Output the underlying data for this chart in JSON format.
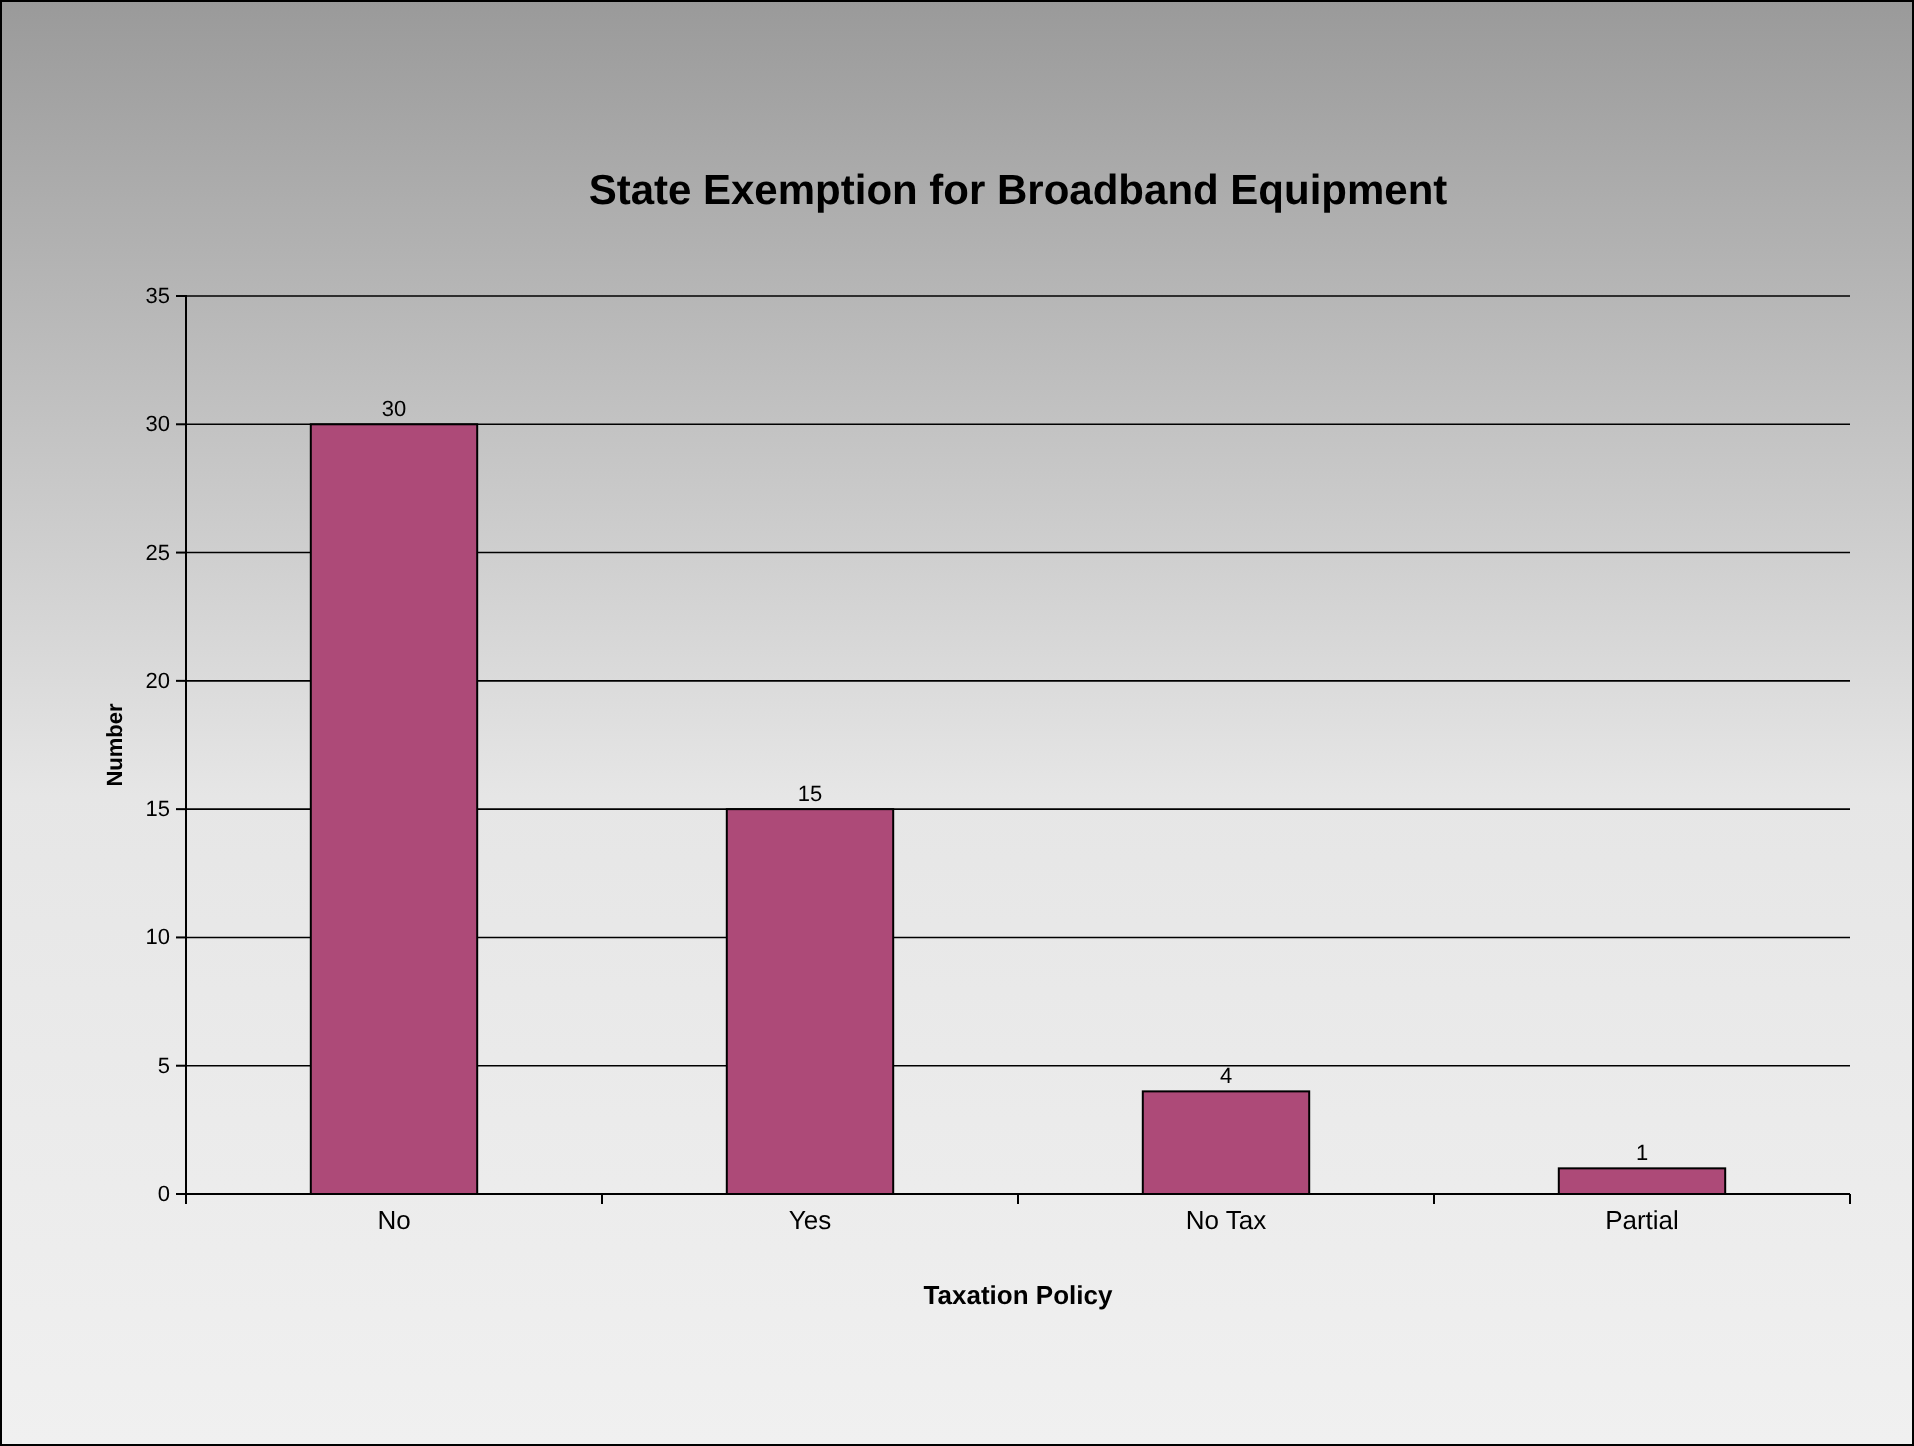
{
  "chart_data": {
    "type": "bar",
    "title": "State Exemption for Broadband Equipment",
    "xlabel": "Taxation Policy",
    "ylabel": "Number",
    "categories": [
      "No",
      "Yes",
      "No Tax",
      "Partial"
    ],
    "values": [
      30,
      15,
      4,
      1
    ],
    "color": "#ad4a78",
    "ylim": [
      0,
      35
    ],
    "yticks": [
      0,
      5,
      10,
      15,
      20,
      25,
      30,
      35
    ],
    "grid": "y",
    "data_labels": true
  }
}
